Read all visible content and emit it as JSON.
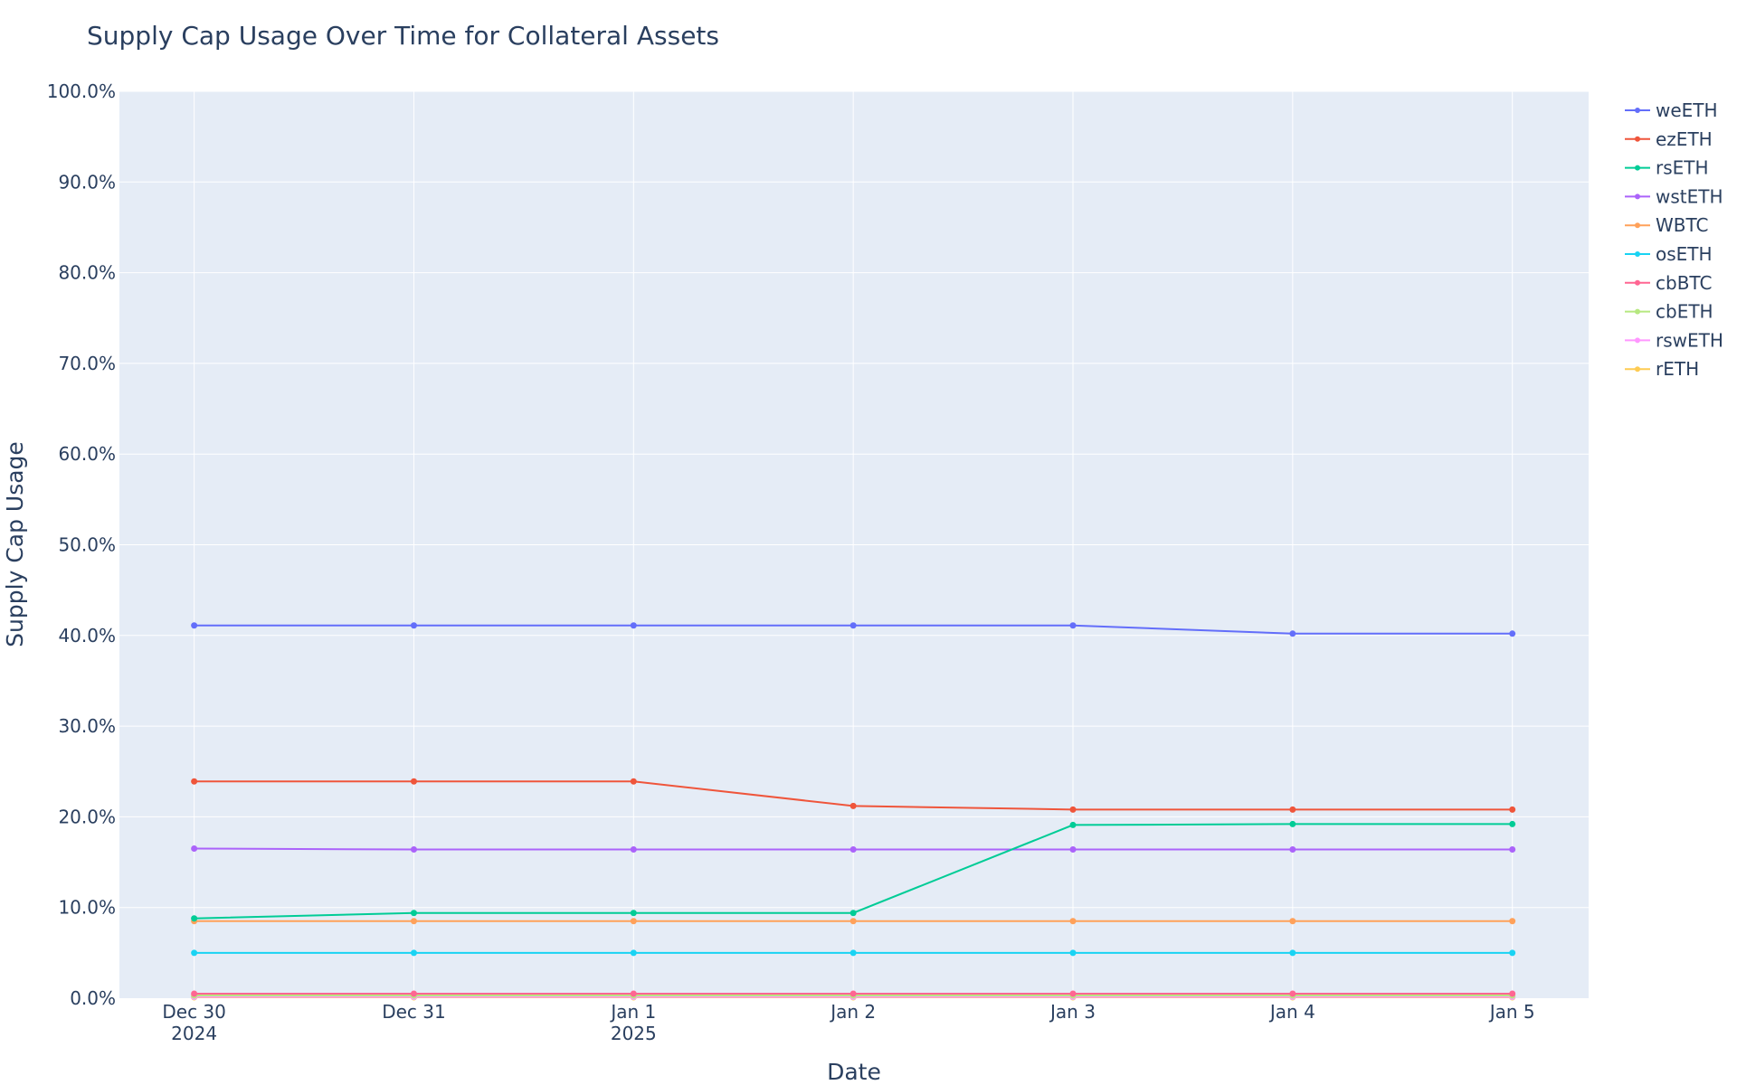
{
  "chart_data": {
    "type": "line",
    "title": "Supply Cap Usage Over Time for Collateral Assets",
    "xlabel": "Date",
    "ylabel": "Supply Cap Usage",
    "x": [
      "2024-12-30",
      "2024-12-31",
      "2025-01-01",
      "2025-01-02",
      "2025-01-03",
      "2025-01-04",
      "2025-01-05"
    ],
    "x_tick_labels": [
      [
        "Dec 30",
        "2024"
      ],
      [
        "Dec 31"
      ],
      [
        "Jan 1",
        "2025"
      ],
      [
        "Jan 2"
      ],
      [
        "Jan 3"
      ],
      [
        "Jan 4"
      ],
      [
        "Jan 5"
      ]
    ],
    "xlim": [
      "2024-12-29 15:50",
      "2025-01-05 08:20"
    ],
    "ylim": [
      0,
      100
    ],
    "y_ticks": [
      0,
      10,
      20,
      30,
      40,
      50,
      60,
      70,
      80,
      90,
      100
    ],
    "y_tick_labels": [
      "0.0%",
      "10.0%",
      "20.0%",
      "30.0%",
      "40.0%",
      "50.0%",
      "60.0%",
      "70.0%",
      "80.0%",
      "90.0%",
      "100.0%"
    ],
    "grid": true,
    "legend_position": "right",
    "plot_background": "#e5ecf6",
    "series": [
      {
        "name": "weETH",
        "color": "#636efa",
        "values": [
          41.1,
          41.1,
          41.1,
          41.1,
          41.1,
          40.2,
          40.2
        ]
      },
      {
        "name": "ezETH",
        "color": "#ef553b",
        "values": [
          23.9,
          23.9,
          23.9,
          21.2,
          20.8,
          20.8,
          20.8
        ]
      },
      {
        "name": "rsETH",
        "color": "#00cc96",
        "values": [
          8.8,
          9.4,
          9.4,
          9.4,
          19.1,
          19.2,
          19.2
        ]
      },
      {
        "name": "wstETH",
        "color": "#ab63fa",
        "values": [
          16.5,
          16.4,
          16.4,
          16.4,
          16.4,
          16.4,
          16.4
        ]
      },
      {
        "name": "WBTC",
        "color": "#ffa15a",
        "values": [
          8.5,
          8.5,
          8.5,
          8.5,
          8.5,
          8.5,
          8.5
        ]
      },
      {
        "name": "osETH",
        "color": "#19d3f3",
        "values": [
          5.0,
          5.0,
          5.0,
          5.0,
          5.0,
          5.0,
          5.0
        ]
      },
      {
        "name": "cbBTC",
        "color": "#ff6692",
        "values": [
          0.5,
          0.5,
          0.5,
          0.5,
          0.5,
          0.5,
          0.5
        ]
      },
      {
        "name": "cbETH",
        "color": "#b6e880",
        "values": [
          0.3,
          0.3,
          0.3,
          0.3,
          0.3,
          0.3,
          0.3
        ]
      },
      {
        "name": "rswETH",
        "color": "#ff97ff",
        "values": [
          0.15,
          0.15,
          0.15,
          0.15,
          0.15,
          0.15,
          0.15
        ]
      },
      {
        "name": "rETH",
        "color": "#fecb52",
        "values": [
          0.1,
          0.1,
          0.1,
          0.1,
          0.1,
          0.1,
          0.1
        ]
      }
    ]
  }
}
